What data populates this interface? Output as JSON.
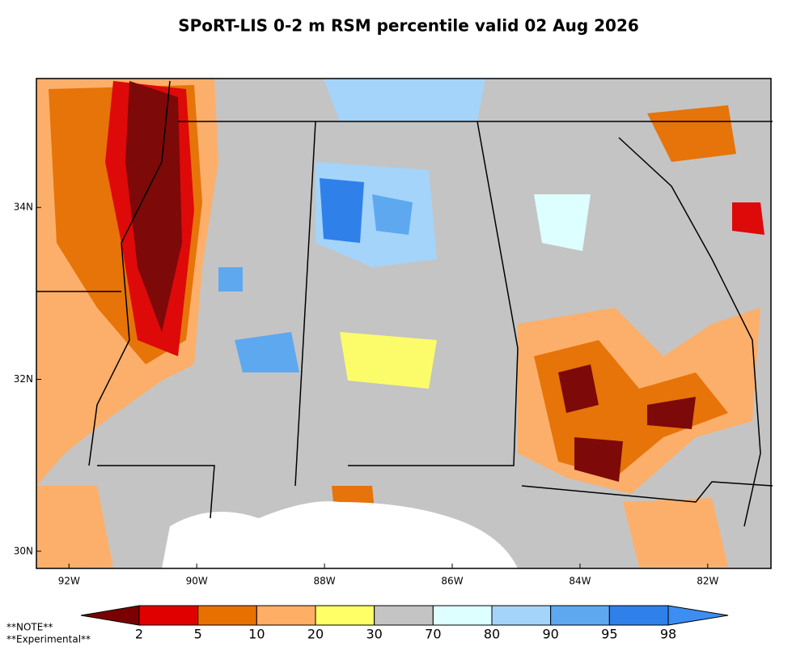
{
  "chart_data": {
    "type": "map",
    "title": "SPoRT-LIS 0-2 m RSM percentile valid 02 Aug 2026",
    "xlim": [
      -92.51,
      -81.01
    ],
    "ylim": [
      29.8,
      35.5
    ],
    "xticks": [
      {
        "value": -92,
        "label": "92W"
      },
      {
        "value": -90,
        "label": "90W"
      },
      {
        "value": -88,
        "label": "88W"
      },
      {
        "value": -86,
        "label": "86W"
      },
      {
        "value": -84,
        "label": "84W"
      },
      {
        "value": -82,
        "label": "82W"
      }
    ],
    "yticks": [
      {
        "value": 30,
        "label": "30N"
      },
      {
        "value": 32,
        "label": "32N"
      },
      {
        "value": 34,
        "label": "34N"
      }
    ],
    "colorbar": {
      "ticks": [
        2,
        5,
        10,
        20,
        30,
        70,
        80,
        90,
        95,
        98
      ],
      "colors": [
        "#7a0000",
        "#e00000",
        "#e87000",
        "#ffae66",
        "#ffff66",
        "#c4c4c4",
        "#ddffff",
        "#a4d4fa",
        "#5ea8f0",
        "#3080ea",
        "#3c8ef2"
      ]
    },
    "notes": [
      "**NOTE**",
      "**Experimental**"
    ]
  }
}
